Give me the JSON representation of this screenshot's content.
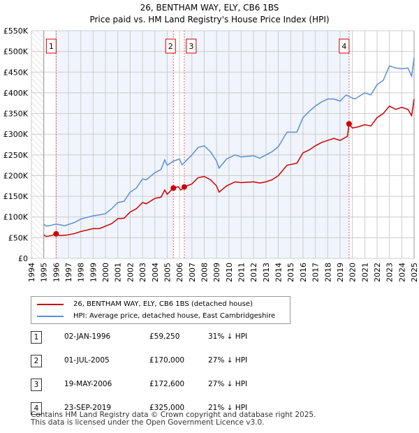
{
  "chart_data": {
    "type": "line",
    "title": "26, BENTHAM WAY, ELY, CB6 1BS",
    "subtitle": "Price paid vs. HM Land Registry's House Price Index (HPI)",
    "xlim": [
      1994,
      2025
    ],
    "ylim": [
      0,
      550000
    ],
    "x_ticks": [
      "1994",
      "1995",
      "1996",
      "1997",
      "1998",
      "1999",
      "2000",
      "2001",
      "2002",
      "2003",
      "2004",
      "2005",
      "2006",
      "2007",
      "2008",
      "2009",
      "2010",
      "2011",
      "2012",
      "2013",
      "2014",
      "2015",
      "2016",
      "2017",
      "2018",
      "2019",
      "2020",
      "2021",
      "2022",
      "2023",
      "2024",
      "2025"
    ],
    "y_ticks": [
      {
        "v": 0,
        "l": "£0"
      },
      {
        "v": 50000,
        "l": "£50K"
      },
      {
        "v": 100000,
        "l": "£100K"
      },
      {
        "v": 150000,
        "l": "£150K"
      },
      {
        "v": 200000,
        "l": "£200K"
      },
      {
        "v": 250000,
        "l": "£250K"
      },
      {
        "v": 300000,
        "l": "£300K"
      },
      {
        "v": 350000,
        "l": "£350K"
      },
      {
        "v": 400000,
        "l": "£400K"
      },
      {
        "v": 450000,
        "l": "£450K"
      },
      {
        "v": 500000,
        "l": "£500K"
      },
      {
        "v": 550000,
        "l": "£550K"
      }
    ],
    "grid": true,
    "series": [
      {
        "name": "26, BENTHAM WAY, ELY, CB6 1BS (detached house)",
        "color": "#cc0000",
        "points": [
          [
            1995,
            57
          ],
          [
            1995.2,
            53
          ],
          [
            1995.6,
            55
          ],
          [
            1996,
            59.25
          ],
          [
            1996.3,
            55
          ],
          [
            1996.8,
            56
          ],
          [
            1997.5,
            60
          ],
          [
            1998,
            65
          ],
          [
            1999,
            72
          ],
          [
            1999.5,
            72
          ],
          [
            2000,
            78
          ],
          [
            2000.5,
            84
          ],
          [
            2001,
            96
          ],
          [
            2001.5,
            97
          ],
          [
            2002,
            112
          ],
          [
            2002.5,
            120
          ],
          [
            2003,
            135
          ],
          [
            2003.3,
            132
          ],
          [
            2004,
            145
          ],
          [
            2004.5,
            148
          ],
          [
            2004.8,
            165
          ],
          [
            2005,
            155
          ],
          [
            2005.5,
            170
          ],
          [
            2005.9,
            173
          ],
          [
            2006.1,
            165
          ],
          [
            2006.38,
            172.6
          ],
          [
            2007,
            180
          ],
          [
            2007.5,
            195
          ],
          [
            2008,
            198
          ],
          [
            2008.5,
            190
          ],
          [
            2009,
            175
          ],
          [
            2009.2,
            160
          ],
          [
            2009.8,
            175
          ],
          [
            2010.5,
            185
          ],
          [
            2011,
            183
          ],
          [
            2012,
            185
          ],
          [
            2012.5,
            182
          ],
          [
            2013,
            185
          ],
          [
            2013.5,
            190
          ],
          [
            2014,
            200
          ],
          [
            2014.7,
            225
          ],
          [
            2015.5,
            230
          ],
          [
            2016,
            255
          ],
          [
            2016.5,
            262
          ],
          [
            2017,
            272
          ],
          [
            2017.5,
            280
          ],
          [
            2018,
            285
          ],
          [
            2018.5,
            290
          ],
          [
            2019,
            285
          ],
          [
            2019.6,
            295
          ],
          [
            2019.73,
            325
          ],
          [
            2020,
            315
          ],
          [
            2020.5,
            318
          ],
          [
            2021,
            323
          ],
          [
            2021.5,
            320
          ],
          [
            2022,
            340
          ],
          [
            2022.5,
            350
          ],
          [
            2023,
            368
          ],
          [
            2023.5,
            360
          ],
          [
            2024,
            365
          ],
          [
            2024.5,
            360
          ],
          [
            2024.8,
            345
          ],
          [
            2025,
            385
          ]
        ]
      },
      {
        "name": "HPI: Average price, detached house, East Cambridgeshire",
        "color": "#5b8fd6",
        "points": [
          [
            1995,
            83
          ],
          [
            1995.2,
            78
          ],
          [
            1995.6,
            80
          ],
          [
            1996,
            83
          ],
          [
            1996.7,
            79
          ],
          [
            1997.5,
            87
          ],
          [
            1998,
            95
          ],
          [
            1999,
            103
          ],
          [
            1999.5,
            105
          ],
          [
            2000,
            108
          ],
          [
            2000.5,
            120
          ],
          [
            2001,
            135
          ],
          [
            2001.5,
            138
          ],
          [
            2002,
            160
          ],
          [
            2002.5,
            170
          ],
          [
            2003,
            192
          ],
          [
            2003.3,
            190
          ],
          [
            2004,
            207
          ],
          [
            2004.5,
            215
          ],
          [
            2004.8,
            238
          ],
          [
            2005,
            225
          ],
          [
            2005.5,
            235
          ],
          [
            2006,
            240
          ],
          [
            2006.2,
            226
          ],
          [
            2007,
            250
          ],
          [
            2007.5,
            268
          ],
          [
            2008,
            272
          ],
          [
            2008.5,
            258
          ],
          [
            2009,
            235
          ],
          [
            2009.2,
            218
          ],
          [
            2009.8,
            240
          ],
          [
            2010.5,
            250
          ],
          [
            2011,
            245
          ],
          [
            2012,
            248
          ],
          [
            2012.5,
            242
          ],
          [
            2013,
            250
          ],
          [
            2013.5,
            258
          ],
          [
            2014,
            270
          ],
          [
            2014.7,
            305
          ],
          [
            2015.5,
            305
          ],
          [
            2016,
            340
          ],
          [
            2016.5,
            355
          ],
          [
            2017,
            368
          ],
          [
            2017.5,
            378
          ],
          [
            2018,
            385
          ],
          [
            2018.5,
            385
          ],
          [
            2019,
            380
          ],
          [
            2019.5,
            395
          ],
          [
            2019.8,
            390
          ],
          [
            2020.2,
            385
          ],
          [
            2021,
            400
          ],
          [
            2021.5,
            395
          ],
          [
            2022,
            420
          ],
          [
            2022.5,
            430
          ],
          [
            2023,
            465
          ],
          [
            2023.5,
            460
          ],
          [
            2024,
            458
          ],
          [
            2024.5,
            460
          ],
          [
            2024.8,
            440
          ],
          [
            2025,
            485
          ]
        ]
      }
    ],
    "sales": [
      {
        "label": "1",
        "x": 1996.0
      },
      {
        "label": "2",
        "x": 2005.5
      },
      {
        "label": "3",
        "x": 2006.38
      },
      {
        "label": "4",
        "x": 2019.73
      }
    ],
    "sale_values": [
      59.25,
      170,
      172.6,
      325
    ],
    "legend_position": "bottom"
  },
  "table": [
    {
      "n": "1",
      "date": "02-JAN-1996",
      "price": "£59,250",
      "diff": "31% ↓ HPI"
    },
    {
      "n": "2",
      "date": "01-JUL-2005",
      "price": "£170,000",
      "diff": "27% ↓ HPI"
    },
    {
      "n": "3",
      "date": "19-MAY-2006",
      "price": "£172,600",
      "diff": "27% ↓ HPI"
    },
    {
      "n": "4",
      "date": "23-SEP-2019",
      "price": "£325,000",
      "diff": "21% ↓ HPI"
    }
  ],
  "footer": [
    "Contains HM Land Registry data © Crown copyright and database right 2025.",
    "This data is licensed under the Open Government Licence v3.0."
  ]
}
